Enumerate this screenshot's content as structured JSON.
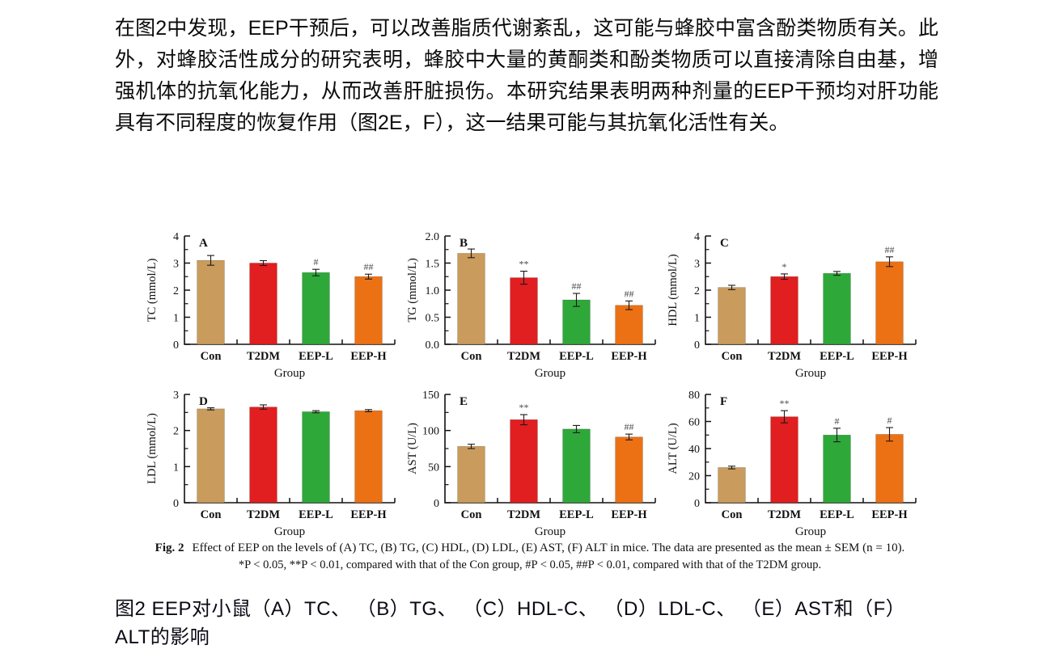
{
  "paragraph": {
    "text": "在图2中发现，EEP干预后，可以改善脂质代谢紊乱，这可能与蜂胶中富含酚类物质有关。此外，对蜂胶活性成分的研究表明，蜂胶中大量的黄酮类和酚类物质可以直接清除自由基，增强机体的抗氧化能力，从而改善肝脏损伤。本研究结果表明两种剂量的EEP干预均对肝功能具有不同程度的恢复作用（图2E，F），这一结果可能与其抗氧化活性有关。"
  },
  "figure": {
    "caption_en": {
      "fig_label": "Fig. 2",
      "line1": "Effect of EEP on the levels of (A) TC, (B) TG, (C) HDL, (D) LDL, (E) AST, (F) ALT in mice. The data are presented as the mean ± SEM (n = 10).",
      "line2": "*P < 0.05, **P < 0.01, compared with that of the Con group, #P < 0.05, ##P < 0.01, compared with that of the T2DM group."
    },
    "caption_zh": "图2 EEP对小鼠（A）TC、 （B）TG、 （C）HDL-C、 （D）LDL-C、 （E）AST和（F）ALT的影响"
  },
  "colors": {
    "bars": [
      "#C99B5C",
      "#E11E20",
      "#2FA83A",
      "#EC7115"
    ],
    "axis": "#111111",
    "error_bar": "#1a1a1a",
    "annotation": "#4a4a4a"
  },
  "chart_data": [
    {
      "type": "bar",
      "panel": "A",
      "title": "",
      "xlabel": "Group",
      "ylabel": "TC (mmol/L)",
      "categories": [
        "Con",
        "T2DM",
        "EEP-L",
        "EEP-H"
      ],
      "values": [
        3.1,
        3.0,
        2.65,
        2.5
      ],
      "errors": [
        0.18,
        0.09,
        0.12,
        0.09
      ],
      "annotations": [
        "",
        "",
        "#",
        "##"
      ],
      "ylim": [
        0,
        4
      ],
      "yticks": [
        0,
        1,
        2,
        3,
        4
      ],
      "ytick_labels": [
        "0",
        "1",
        "2",
        "3",
        "4"
      ],
      "grid": false,
      "legend": "none"
    },
    {
      "type": "bar",
      "panel": "B",
      "title": "",
      "xlabel": "Group",
      "ylabel": "TG (mmol/L)",
      "categories": [
        "Con",
        "T2DM",
        "EEP-L",
        "EEP-H"
      ],
      "values": [
        1.68,
        1.23,
        0.82,
        0.72
      ],
      "errors": [
        0.08,
        0.12,
        0.12,
        0.08
      ],
      "annotations": [
        "",
        "**",
        "##",
        "##"
      ],
      "ylim": [
        0,
        2
      ],
      "yticks": [
        0,
        0.5,
        1,
        1.5,
        2
      ],
      "ytick_labels": [
        "0.0",
        "0.5",
        "1.0",
        "1.5",
        "2.0"
      ],
      "grid": false,
      "legend": "none"
    },
    {
      "type": "bar",
      "panel": "C",
      "title": "",
      "xlabel": "Group",
      "ylabel": "HDL (mmol/L)",
      "categories": [
        "Con",
        "T2DM",
        "EEP-L",
        "EEP-H"
      ],
      "values": [
        2.1,
        2.5,
        2.62,
        3.05
      ],
      "errors": [
        0.08,
        0.1,
        0.07,
        0.18
      ],
      "annotations": [
        "",
        "*",
        "",
        "##"
      ],
      "ylim": [
        0,
        4
      ],
      "yticks": [
        0,
        1,
        2,
        3,
        4
      ],
      "ytick_labels": [
        "0",
        "1",
        "2",
        "3",
        "4"
      ],
      "grid": false,
      "legend": "none"
    },
    {
      "type": "bar",
      "panel": "D",
      "title": "",
      "xlabel": "Group",
      "ylabel": "LDL (mmol/L)",
      "categories": [
        "Con",
        "T2DM",
        "EEP-L",
        "EEP-H"
      ],
      "values": [
        2.6,
        2.65,
        2.52,
        2.55
      ],
      "errors": [
        0.03,
        0.06,
        0.03,
        0.03
      ],
      "annotations": [
        "",
        "",
        "",
        ""
      ],
      "ylim": [
        0,
        3
      ],
      "yticks": [
        0,
        1,
        2,
        3
      ],
      "ytick_labels": [
        "0",
        "1",
        "2",
        "3"
      ],
      "grid": false,
      "legend": "none"
    },
    {
      "type": "bar",
      "panel": "E",
      "title": "",
      "xlabel": "Group",
      "ylabel": "AST (U/L)",
      "categories": [
        "Con",
        "T2DM",
        "EEP-L",
        "EEP-H"
      ],
      "values": [
        78,
        115,
        102,
        91
      ],
      "errors": [
        3,
        7,
        5,
        4
      ],
      "annotations": [
        "",
        "**",
        "",
        "##"
      ],
      "ylim": [
        0,
        150
      ],
      "yticks": [
        0,
        50,
        100,
        150
      ],
      "ytick_labels": [
        "0",
        "50",
        "100",
        "150"
      ],
      "grid": false,
      "legend": "none"
    },
    {
      "type": "bar",
      "panel": "F",
      "title": "",
      "xlabel": "Group",
      "ylabel": "ALT (U/L)",
      "categories": [
        "Con",
        "T2DM",
        "EEP-L",
        "EEP-H"
      ],
      "values": [
        26,
        63.5,
        50,
        50.5
      ],
      "errors": [
        1,
        4.5,
        5,
        5
      ],
      "annotations": [
        "",
        "**",
        "#",
        "#"
      ],
      "ylim": [
        0,
        80
      ],
      "yticks": [
        0,
        20,
        40,
        60,
        80
      ],
      "ytick_labels": [
        "0",
        "20",
        "40",
        "60",
        "80"
      ],
      "grid": false,
      "legend": "none"
    }
  ]
}
